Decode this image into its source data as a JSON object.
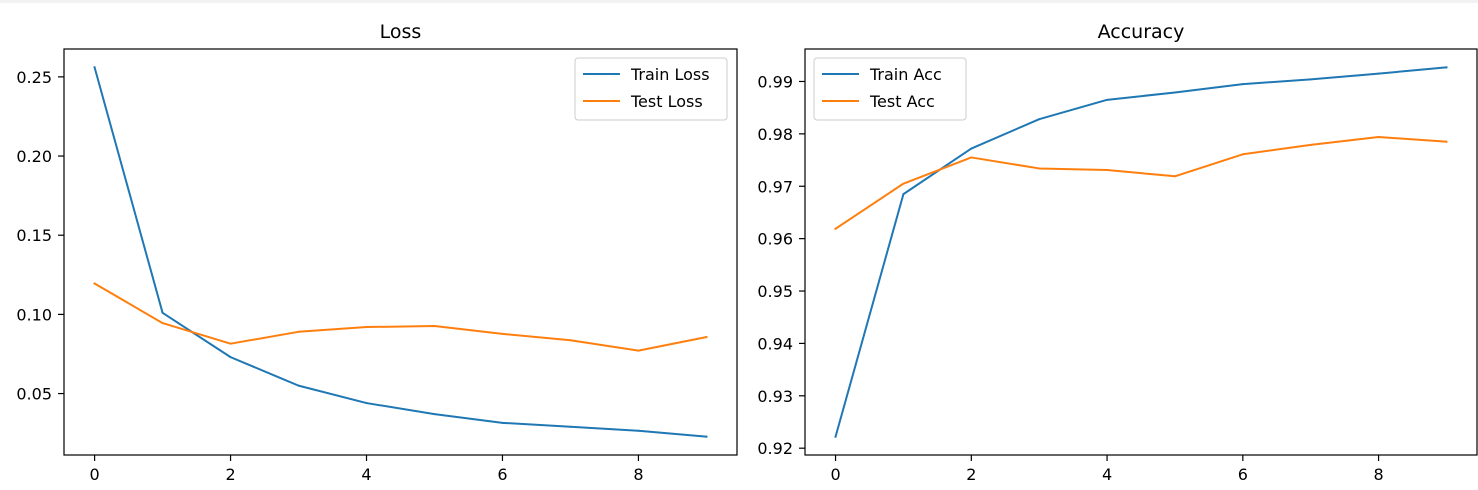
{
  "chart_data": [
    {
      "type": "line",
      "title": "Loss",
      "xlabel": "",
      "ylabel": "",
      "x": [
        0,
        1,
        2,
        3,
        4,
        5,
        6,
        7,
        8,
        9
      ],
      "series": [
        {
          "name": "Train Loss",
          "color": "#1f77b4",
          "values": [
            0.256,
            0.101,
            0.073,
            0.055,
            0.044,
            0.037,
            0.0315,
            0.029,
            0.0265,
            0.0228
          ]
        },
        {
          "name": "Test Loss",
          "color": "#ff7f0e",
          "values": [
            0.1195,
            0.0945,
            0.0815,
            0.089,
            0.092,
            0.0927,
            0.0877,
            0.0837,
            0.0771,
            0.0857
          ]
        }
      ],
      "xlim": [
        -0.45,
        9.45
      ],
      "ylim": [
        0.0112,
        0.2676
      ],
      "xticks": [
        0,
        2,
        4,
        6,
        8
      ],
      "xtick_labels": [
        "0",
        "2",
        "4",
        "6",
        "8"
      ],
      "yticks": [
        0.05,
        0.1,
        0.15,
        0.2,
        0.25
      ],
      "ytick_labels": [
        "0.05",
        "0.10",
        "0.15",
        "0.20",
        "0.25"
      ],
      "grid": false,
      "legend_position": "upper right"
    },
    {
      "type": "line",
      "title": "Accuracy",
      "xlabel": "",
      "ylabel": "",
      "x": [
        0,
        1,
        2,
        3,
        4,
        5,
        6,
        7,
        8,
        9
      ],
      "series": [
        {
          "name": "Train Acc",
          "color": "#1f77b4",
          "values": [
            0.9222,
            0.9685,
            0.9772,
            0.9828,
            0.9865,
            0.9879,
            0.9895,
            0.9904,
            0.9915,
            0.9927
          ]
        },
        {
          "name": "Test Acc",
          "color": "#ff7f0e",
          "values": [
            0.9619,
            0.9705,
            0.9755,
            0.9734,
            0.9731,
            0.9719,
            0.9761,
            0.9779,
            0.9794,
            0.9785
          ]
        }
      ],
      "xlim": [
        -0.45,
        9.45
      ],
      "ylim": [
        0.9187,
        0.9962
      ],
      "xticks": [
        0,
        2,
        4,
        6,
        8
      ],
      "xtick_labels": [
        "0",
        "2",
        "4",
        "6",
        "8"
      ],
      "yticks": [
        0.92,
        0.93,
        0.94,
        0.95,
        0.96,
        0.97,
        0.98,
        0.99
      ],
      "ytick_labels": [
        "0.92",
        "0.93",
        "0.94",
        "0.95",
        "0.96",
        "0.97",
        "0.98",
        "0.99"
      ],
      "grid": false,
      "legend_position": "upper left"
    }
  ]
}
